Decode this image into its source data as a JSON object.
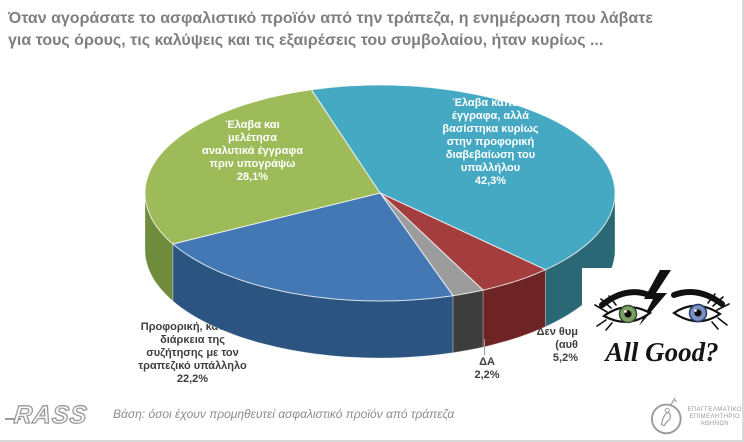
{
  "title": "Όταν αγοράσατε το ασφαλιστικό προϊόν από την τράπεζα, η ενημέρωση που λάβατε\nγια τους όρους, τις καλύψεις και τις εξαιρέσεις του συμβολαίου, ήταν κυρίως ...",
  "chart_data": {
    "type": "pie",
    "title": "Όταν αγοράσατε το ασφαλιστικό προϊόν από την τράπεζα, η ενημέρωση που λάβατε για τους όρους, τις καλύψεις και τις εξαιρέσεις του συμβολαίου, ήταν κυρίως ...",
    "style": "3d-pie",
    "legend_position": "labels-on-and-around-slices",
    "start_angle": -17,
    "slices": [
      {
        "name": "some-documents-relied-on-verbal-assurance",
        "value": 42.3,
        "display": "42,3%",
        "color": "#46a9c4",
        "side_color": "#2a6876",
        "label_lines": [
          "Έλαβα κάποια",
          "έγγραφα, αλλά",
          "βασίστηκα κυρίως",
          "στην προφορική",
          "διαβεβαίωση του",
          "υπαλλήλου",
          "42,3%"
        ]
      },
      {
        "name": "dont-remember",
        "value": 5.2,
        "display": "5,2%",
        "color": "#a43e3e",
        "side_color": "#6e2424",
        "label_lines": [
          "Δεν θυμ",
          "(αυθ",
          "5,2%"
        ]
      },
      {
        "name": "no-answer",
        "value": 2.2,
        "display": "2,2%",
        "color": "#9c9c9c",
        "side_color": "#3d3d3d",
        "label_lines": [
          "ΔΑ",
          "2,2%"
        ]
      },
      {
        "name": "verbal-during-discussion-with-bank-clerk",
        "value": 22.2,
        "display": "22,2%",
        "color": "#4478b4",
        "side_color": "#2b5480",
        "label_lines": [
          "Προφορική, κατά τη",
          "διάρκεια της",
          "συζήτησης με τον",
          "τραπεζικό υπάλληλο",
          "22,2%"
        ]
      },
      {
        "name": "received-and-studied-detailed-documents",
        "value": 28.1,
        "display": "28,1%",
        "color": "#9dbb59",
        "side_color": "#6f8b3c",
        "label_lines": [
          "Έλαβα και",
          "μελέτησα",
          "αναλυτικά έγγραφα",
          "πριν υπογράψω",
          "28,1%"
        ]
      }
    ]
  },
  "watermark": {
    "text": "All Good?"
  },
  "footer": {
    "base_note": "Βάση: όσοι έχουν προμηθευτεί ασφαλιστικό προϊόν από τράπεζα",
    "rass_logo": "RASS",
    "chamber_lines": [
      "ΕΠΑΓΓΕΛΜΑΤΙΚΟ",
      "ΕΠΙΜΕΛΗΤΗΡΙΟ",
      "ΑΘΗΝΩΝ"
    ]
  }
}
